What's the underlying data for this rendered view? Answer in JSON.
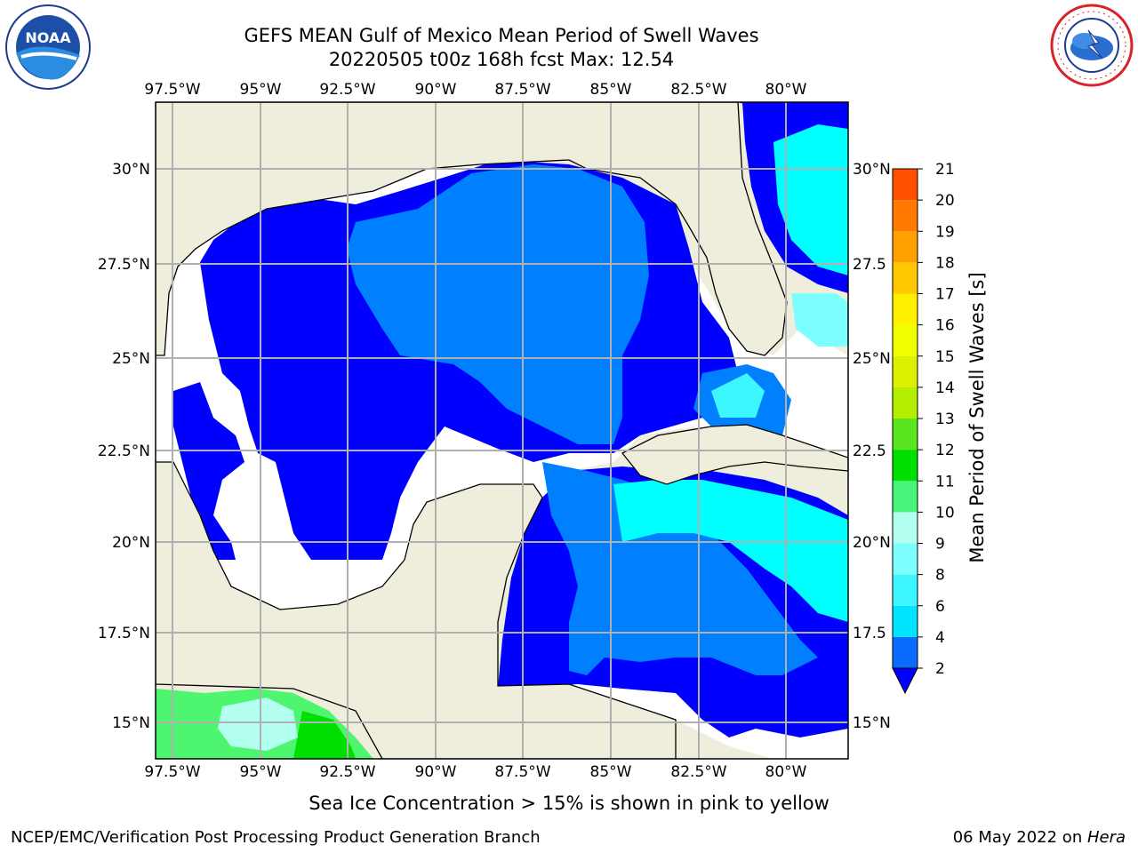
{
  "header": {
    "title_line1": "GEFS MEAN Gulf of Mexico Mean Period of Swell Waves",
    "title_line2": "20220505 t00z 168h fcst   Max: 12.54"
  },
  "map": {
    "lon_labels": [
      "97.5°W",
      "95°W",
      "92.5°W",
      "90°W",
      "87.5°W",
      "85°W",
      "82.5°W",
      "80°W"
    ],
    "lat_labels": [
      "30°N",
      "27.5°N",
      "25°N",
      "22.5°N",
      "20°N",
      "17.5°N",
      "15°N"
    ],
    "lat_labels_right": [
      "30°N",
      "27.5",
      "25°N",
      "22.5",
      "20°N",
      "17.5",
      "15°N"
    ],
    "colors": {
      "land": "#efeedc",
      "water_low": "#0000ff",
      "water_mid": "#0080ff",
      "water_high": "#00ffff",
      "water_vhigh": "#46ffc4",
      "green": "#4ef56e",
      "grid": "#b0b0b0"
    }
  },
  "colorbar": {
    "label": "Mean Period of Swell Waves [s]",
    "ticks": [
      "2",
      "4",
      "6",
      "8",
      "9",
      "10",
      "11",
      "12",
      "13",
      "14",
      "15",
      "16",
      "17",
      "18",
      "19",
      "20",
      "21"
    ],
    "colors": [
      "#0a6cff",
      "#00e5ff",
      "#3cf7ff",
      "#7dffff",
      "#b3fff0",
      "#46f57a",
      "#00e000",
      "#5ae61e",
      "#b4ee00",
      "#dcf000",
      "#f0ff00",
      "#fff000",
      "#ffc800",
      "#ffa000",
      "#ff7800",
      "#ff5000",
      "#ff1e00",
      "#ff0000"
    ]
  },
  "footer": {
    "sea_ice_note": "Sea Ice Concentration > 15% is shown in pink to yellow",
    "branch": "NCEP/EMC/Verification Post Processing Product Generation Branch",
    "date": "06 May 2022 on ",
    "machine": "Hera"
  },
  "logos": {
    "left": "noara-logo",
    "left_text": "NOAA",
    "right": "nws-logo",
    "right_text": "NATIONAL WEATHER SERVICE"
  }
}
